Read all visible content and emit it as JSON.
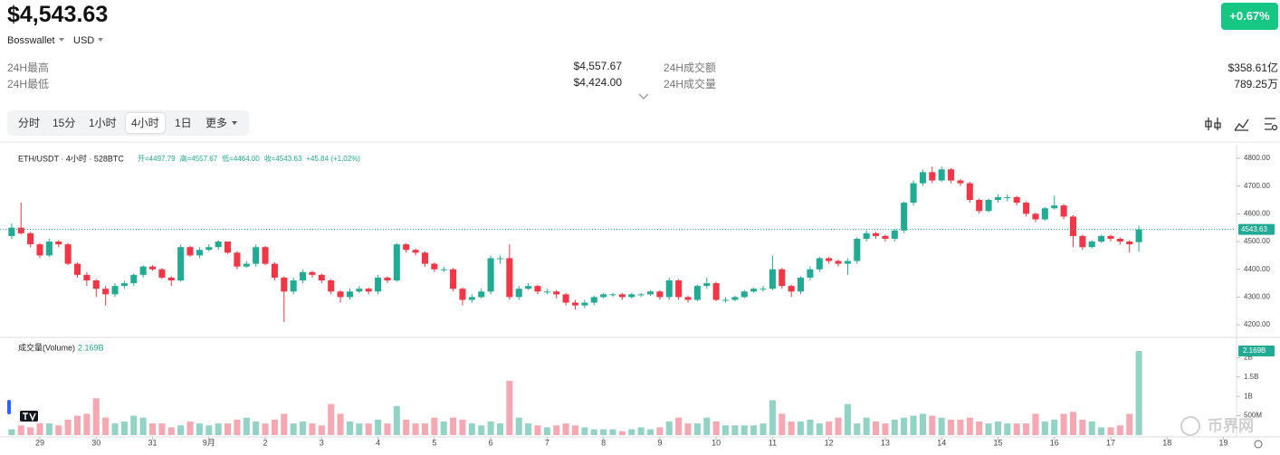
{
  "header": {
    "price": "$4,543.63",
    "exchange": "Bosswallet",
    "currency": "USD",
    "change": "+0.67%"
  },
  "stats": [
    {
      "label": "24H最高",
      "value": "$4,557.67"
    },
    {
      "label": "24H最低",
      "value": "$4,424.00"
    },
    {
      "label": "24H成交额",
      "value": "$358.61亿"
    },
    {
      "label": "24H成交量",
      "value": "789.25万"
    }
  ],
  "tabs": [
    "分时",
    "15分",
    "1小时",
    "4小时",
    "1日",
    "更多"
  ],
  "active_tab": 3,
  "watermark": "币界网",
  "chart_data": [
    {
      "type": "candlestick",
      "title": "ETH/USDT · 4小时 · 528BTC",
      "ohlc_legend": [
        "开=4497.79",
        "高=4557.67",
        "低=4464.00",
        "收=4543.63",
        "+45.84 (+1.02%)"
      ],
      "up_color": "#22ab94",
      "down_color": "#f23645",
      "open": [
        4520,
        4550,
        4530,
        4490,
        4450,
        4500,
        4490,
        4420,
        4380,
        4360,
        4330,
        4310,
        4340,
        4350,
        4380,
        4410,
        4400,
        4370,
        4360,
        4480,
        4450,
        4470,
        4480,
        4500,
        4460,
        4410,
        4420,
        4480,
        4420,
        4370,
        4320,
        4360,
        4390,
        4380,
        4360,
        4320,
        4300,
        4320,
        4330,
        4320,
        4370,
        4360,
        4490,
        4470,
        4460,
        4420,
        4400,
        4400,
        4330,
        4290,
        4300,
        4320,
        4440,
        4440,
        4300,
        4330,
        4340,
        4320,
        4320,
        4310,
        4280,
        4270,
        4280,
        4300,
        4310,
        4310,
        4300,
        4310,
        4310,
        4320,
        4300,
        4360,
        4300,
        4290,
        4340,
        4350,
        4290,
        4290,
        4300,
        4320,
        4330,
        4330,
        4400,
        4340,
        4320,
        4370,
        4400,
        4440,
        4430,
        4420,
        4430,
        4510,
        4530,
        4520,
        4510,
        4540,
        4640,
        4710,
        4750,
        4720,
        4760,
        4720,
        4710,
        4650,
        4610,
        4650,
        4660,
        4660,
        4640,
        4600,
        4580,
        4620,
        4630,
        4590,
        4520,
        4480,
        4500,
        4520,
        4510,
        4500,
        4497.79
      ],
      "high": [
        4565,
        4640,
        4535,
        4495,
        4510,
        4505,
        4495,
        4425,
        4390,
        4365,
        4340,
        4350,
        4360,
        4385,
        4415,
        4415,
        4405,
        4375,
        4490,
        4485,
        4480,
        4490,
        4505,
        4500,
        4465,
        4430,
        4490,
        4485,
        4425,
        4375,
        4370,
        4400,
        4395,
        4385,
        4365,
        4325,
        4330,
        4340,
        4335,
        4380,
        4375,
        4495,
        4495,
        4475,
        4465,
        4425,
        4410,
        4405,
        4335,
        4310,
        4330,
        4450,
        4450,
        4490,
        4340,
        4350,
        4345,
        4330,
        4325,
        4315,
        4290,
        4290,
        4305,
        4315,
        4315,
        4315,
        4315,
        4315,
        4325,
        4325,
        4370,
        4365,
        4305,
        4345,
        4370,
        4355,
        4300,
        4305,
        4325,
        4335,
        4340,
        4450,
        4405,
        4345,
        4375,
        4410,
        4445,
        4445,
        4435,
        4440,
        4515,
        4540,
        4535,
        4525,
        4545,
        4645,
        4720,
        4760,
        4770,
        4770,
        4765,
        4725,
        4715,
        4655,
        4655,
        4670,
        4670,
        4665,
        4645,
        4605,
        4625,
        4665,
        4635,
        4595,
        4525,
        4505,
        4525,
        4525,
        4515,
        4505,
        4557.67
      ],
      "low": [
        4510,
        4525,
        4480,
        4440,
        4445,
        4480,
        4415,
        4370,
        4340,
        4300,
        4270,
        4300,
        4330,
        4340,
        4370,
        4395,
        4365,
        4340,
        4355,
        4445,
        4440,
        4465,
        4470,
        4455,
        4400,
        4405,
        4410,
        4415,
        4360,
        4210,
        4310,
        4350,
        4370,
        4350,
        4310,
        4280,
        4290,
        4315,
        4310,
        4310,
        4350,
        4355,
        4460,
        4450,
        4410,
        4390,
        4390,
        4320,
        4270,
        4280,
        4295,
        4310,
        4420,
        4290,
        4290,
        4325,
        4310,
        4310,
        4295,
        4270,
        4255,
        4260,
        4270,
        4295,
        4300,
        4290,
        4295,
        4300,
        4305,
        4290,
        4290,
        4290,
        4280,
        4285,
        4330,
        4285,
        4280,
        4285,
        4295,
        4315,
        4320,
        4325,
        4330,
        4300,
        4310,
        4360,
        4390,
        4420,
        4410,
        4380,
        4420,
        4500,
        4510,
        4500,
        4500,
        4530,
        4630,
        4700,
        4710,
        4715,
        4710,
        4700,
        4640,
        4600,
        4605,
        4640,
        4645,
        4630,
        4590,
        4570,
        4575,
        4615,
        4580,
        4480,
        4470,
        4475,
        4495,
        4500,
        4490,
        4460,
        4464
      ],
      "close": [
        4550,
        4530,
        4490,
        4450,
        4500,
        4490,
        4420,
        4380,
        4360,
        4330,
        4310,
        4340,
        4350,
        4380,
        4410,
        4400,
        4370,
        4360,
        4480,
        4450,
        4470,
        4480,
        4500,
        4460,
        4410,
        4420,
        4480,
        4420,
        4370,
        4320,
        4360,
        4390,
        4380,
        4360,
        4320,
        4300,
        4320,
        4330,
        4320,
        4370,
        4360,
        4490,
        4470,
        4460,
        4420,
        4400,
        4400,
        4330,
        4290,
        4300,
        4320,
        4440,
        4440,
        4300,
        4330,
        4340,
        4320,
        4320,
        4310,
        4280,
        4270,
        4280,
        4300,
        4310,
        4310,
        4300,
        4310,
        4310,
        4320,
        4300,
        4360,
        4300,
        4290,
        4340,
        4350,
        4290,
        4290,
        4300,
        4320,
        4330,
        4330,
        4400,
        4340,
        4320,
        4370,
        4400,
        4440,
        4430,
        4420,
        4430,
        4510,
        4530,
        4520,
        4510,
        4540,
        4640,
        4710,
        4750,
        4720,
        4760,
        4720,
        4710,
        4650,
        4610,
        4650,
        4660,
        4660,
        4640,
        4600,
        4580,
        4620,
        4630,
        4590,
        4520,
        4480,
        4500,
        4520,
        4510,
        4500,
        4490,
        4543.63
      ],
      "xlim": [
        -1.24,
        130.3
      ],
      "xticks": [
        {
          "value": 3,
          "label": "29"
        },
        {
          "value": 9,
          "label": "30"
        },
        {
          "value": 15,
          "label": "31"
        },
        {
          "value": 21,
          "label": "9月"
        },
        {
          "value": 27,
          "label": "2"
        },
        {
          "value": 33,
          "label": "3"
        },
        {
          "value": 39,
          "label": "4"
        },
        {
          "value": 45,
          "label": "5"
        },
        {
          "value": 51,
          "label": "6"
        },
        {
          "value": 57,
          "label": "7"
        },
        {
          "value": 63,
          "label": "8"
        },
        {
          "value": 69,
          "label": "9"
        },
        {
          "value": 75,
          "label": "10"
        },
        {
          "value": 81,
          "label": "11"
        },
        {
          "value": 87,
          "label": "12"
        },
        {
          "value": 93,
          "label": "13"
        },
        {
          "value": 99,
          "label": "14"
        },
        {
          "value": 105,
          "label": "15"
        },
        {
          "value": 111,
          "label": "16"
        },
        {
          "value": 117,
          "label": "17"
        },
        {
          "value": 123,
          "label": "18"
        },
        {
          "value": 129,
          "label": "19"
        }
      ],
      "ylim": [
        4158,
        4839
      ],
      "yticks": [
        {
          "value": 4200,
          "label": "4200.00"
        },
        {
          "value": 4300,
          "label": "4300.00"
        },
        {
          "value": 4400,
          "label": "4400.00"
        },
        {
          "value": 4500,
          "label": "4500.00"
        },
        {
          "value": 4600,
          "label": "4600.00"
        },
        {
          "value": 4700,
          "label": "4700.00"
        },
        {
          "value": 4800,
          "label": "4800.00"
        }
      ]
    },
    {
      "type": "bar",
      "title": "成交量(Volume)",
      "current_label": "2.169B",
      "up_color": "#92d3c6",
      "down_color": "#f5a8b2",
      "values": [
        0.15,
        0.25,
        0.2,
        0.3,
        0.3,
        0.25,
        0.4,
        0.5,
        0.55,
        0.95,
        0.45,
        0.3,
        0.35,
        0.5,
        0.45,
        0.3,
        0.3,
        0.2,
        0.25,
        0.35,
        0.3,
        0.25,
        0.3,
        0.3,
        0.4,
        0.45,
        0.35,
        0.3,
        0.4,
        0.55,
        0.3,
        0.35,
        0.3,
        0.25,
        0.8,
        0.55,
        0.35,
        0.3,
        0.3,
        0.4,
        0.3,
        0.75,
        0.4,
        0.3,
        0.3,
        0.45,
        0.35,
        0.45,
        0.4,
        0.3,
        0.25,
        0.35,
        0.3,
        1.4,
        0.45,
        0.3,
        0.25,
        0.2,
        0.25,
        0.3,
        0.25,
        0.2,
        0.15,
        0.15,
        0.15,
        0.1,
        0.15,
        0.2,
        0.15,
        0.2,
        0.35,
        0.45,
        0.3,
        0.3,
        0.45,
        0.35,
        0.25,
        0.25,
        0.25,
        0.25,
        0.3,
        0.9,
        0.55,
        0.35,
        0.35,
        0.4,
        0.3,
        0.35,
        0.45,
        0.8,
        0.3,
        0.45,
        0.35,
        0.3,
        0.4,
        0.45,
        0.5,
        0.55,
        0.5,
        0.45,
        0.4,
        0.4,
        0.45,
        0.35,
        0.3,
        0.35,
        0.3,
        0.3,
        0.3,
        0.55,
        0.35,
        0.4,
        0.55,
        0.6,
        0.4,
        0.35,
        0.2,
        0.2,
        0.25,
        0.55,
        2.169
      ],
      "ylim": [
        0,
        2.45
      ],
      "yticks": [
        {
          "value": 0.5,
          "label": "500M"
        },
        {
          "value": 1,
          "label": "1B"
        },
        {
          "value": 1.5,
          "label": "1.5B"
        },
        {
          "value": 2,
          "label": "2B"
        }
      ]
    }
  ]
}
